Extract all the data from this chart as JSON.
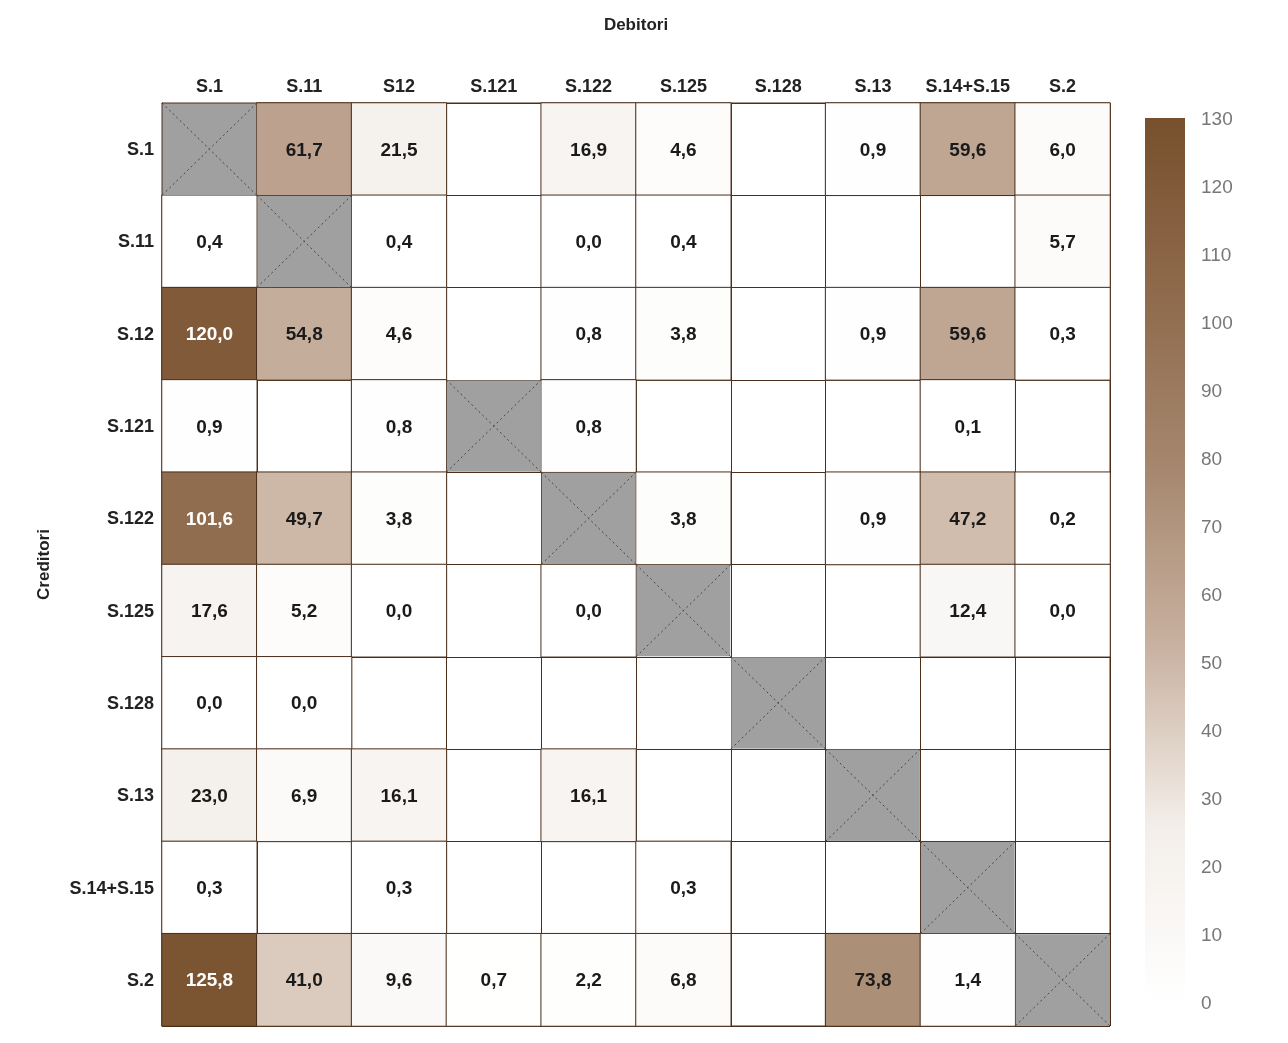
{
  "chart_data": {
    "type": "heatmap",
    "xlabel": "Debitori",
    "ylabel": "Creditori",
    "categories": [
      "S.1",
      "S.11",
      "S12",
      "S.121",
      "S.122",
      "S.125",
      "S.128",
      "S.13",
      "S.14+S.15",
      "S.2"
    ],
    "y_categories": [
      "S.1",
      "S.11",
      "S.12",
      "S.121",
      "S.122",
      "S.125",
      "S.128",
      "S.13",
      "S.14+S.15",
      "S.2"
    ],
    "cells": [
      [
        null,
        61.7,
        21.5,
        null,
        16.9,
        4.6,
        null,
        0.9,
        59.6,
        6.0
      ],
      [
        0.4,
        null,
        0.4,
        null,
        0.0,
        0.4,
        null,
        null,
        null,
        5.7
      ],
      [
        120.0,
        54.8,
        4.6,
        null,
        0.8,
        3.8,
        null,
        0.9,
        59.6,
        0.3
      ],
      [
        0.9,
        null,
        0.8,
        null,
        0.8,
        null,
        null,
        null,
        0.1,
        null
      ],
      [
        101.6,
        49.7,
        3.8,
        null,
        null,
        3.8,
        null,
        0.9,
        47.2,
        0.2
      ],
      [
        17.6,
        5.2,
        0.0,
        null,
        0.0,
        null,
        null,
        null,
        12.4,
        0.0
      ],
      [
        0.0,
        0.0,
        null,
        null,
        null,
        null,
        null,
        null,
        null,
        null
      ],
      [
        23.0,
        6.9,
        16.1,
        null,
        16.1,
        null,
        null,
        null,
        null,
        null
      ],
      [
        0.3,
        null,
        0.3,
        null,
        null,
        0.3,
        null,
        null,
        null,
        null
      ],
      [
        125.8,
        41.0,
        9.6,
        0.7,
        2.2,
        6.8,
        null,
        73.8,
        1.4,
        null
      ]
    ],
    "cell_labels": [
      [
        null,
        "61,7",
        "21,5",
        null,
        "16,9",
        "4,6",
        null,
        "0,9",
        "59,6",
        "6,0"
      ],
      [
        "0,4",
        null,
        "0,4",
        null,
        "0,0",
        "0,4",
        null,
        null,
        null,
        "5,7"
      ],
      [
        "120,0",
        "54,8",
        "4,6",
        null,
        "0,8",
        "3,8",
        null,
        "0,9",
        "59,6",
        "0,3"
      ],
      [
        "0,9",
        null,
        "0,8",
        null,
        "0,8",
        null,
        null,
        null,
        "0,1",
        null
      ],
      [
        "101,6",
        "49,7",
        "3,8",
        null,
        null,
        "3,8",
        null,
        "0,9",
        "47,2",
        "0,2"
      ],
      [
        "17,6",
        "5,2",
        "0,0",
        null,
        "0,0",
        null,
        null,
        null,
        "12,4",
        "0,0"
      ],
      [
        "0,0",
        "0,0",
        null,
        null,
        null,
        null,
        null,
        null,
        null,
        null
      ],
      [
        "23,0",
        "6,9",
        "16,1",
        null,
        "16,1",
        null,
        null,
        null,
        null,
        null
      ],
      [
        "0,3",
        null,
        "0,3",
        null,
        null,
        "0,3",
        null,
        null,
        null,
        null
      ],
      [
        "125,8",
        "41,0",
        "9,6",
        "0,7",
        "2,2",
        "6,8",
        null,
        "73,8",
        "1,4",
        null
      ]
    ],
    "clim": [
      0,
      130
    ],
    "cticks": [
      0,
      10,
      20,
      30,
      40,
      50,
      60,
      70,
      80,
      90,
      100,
      110,
      120,
      130
    ]
  }
}
